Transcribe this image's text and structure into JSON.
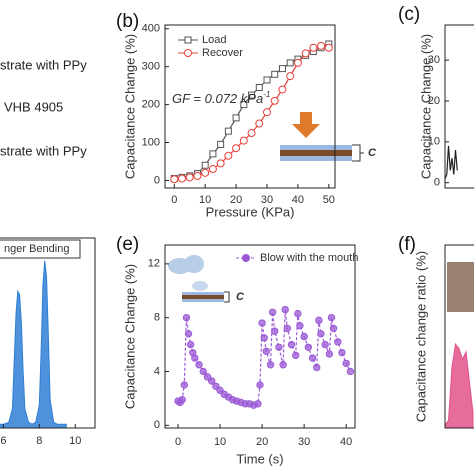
{
  "schematic_labels": [
    "strate with PPy",
    "VHB 4905",
    "strate with PPy"
  ],
  "chart_data": [
    {
      "type": "line",
      "panel_label": "(b)",
      "ylabel": "Capacitance Change (%)",
      "xlabel": "Pressure (KPa)",
      "annotation": "GF = 0.072 kPa",
      "annotation_superscript": "-1",
      "inset_label": "C",
      "legend": "upper left",
      "x": [
        0,
        2.5,
        5,
        7.5,
        10,
        12.5,
        15,
        17.5,
        20,
        22.5,
        25,
        27.5,
        30,
        32.5,
        35,
        37.5,
        40,
        42.5,
        45,
        47.5,
        50
      ],
      "series": [
        {
          "name": "Load",
          "color": "#555555",
          "marker": "square",
          "values": [
            5,
            8,
            12,
            18,
            40,
            70,
            95,
            130,
            165,
            200,
            225,
            245,
            265,
            280,
            295,
            310,
            320,
            330,
            340,
            350,
            360
          ]
        },
        {
          "name": "Recover",
          "color": "#e8403a",
          "marker": "circle",
          "values": [
            3,
            5,
            8,
            12,
            20,
            30,
            45,
            65,
            85,
            105,
            125,
            150,
            180,
            210,
            240,
            275,
            310,
            335,
            350,
            355,
            350
          ]
        }
      ],
      "xlim": [
        -3,
        52
      ],
      "ylim": [
        -20,
        410
      ],
      "xticks": [
        0,
        10,
        20,
        30,
        40,
        50
      ],
      "yticks": [
        0,
        100,
        200,
        300,
        400
      ]
    },
    {
      "type": "line",
      "panel_label": "(c)",
      "ylabel": "Capacitance Change (%)",
      "x": [
        0,
        1,
        2,
        3,
        4,
        5,
        6,
        7
      ],
      "series": [
        {
          "color": "#222222",
          "marker": "none",
          "values": [
            1,
            2,
            9,
            3,
            6,
            2,
            8,
            3
          ]
        }
      ],
      "xlim": [
        0,
        20
      ],
      "ylim": [
        -1.3,
        38.6
      ],
      "yticks": [
        0,
        10,
        20,
        30
      ]
    },
    {
      "type": "area",
      "legend": "upper left",
      "x": [
        5.7,
        6,
        6.3,
        6.5,
        6.6,
        6.7,
        6.8,
        6.9,
        7,
        7.1,
        7.2,
        7.4,
        7.6,
        7.8,
        8,
        8.1,
        8.2,
        8.3,
        8.4,
        8.5,
        8.6,
        8.8,
        9,
        9.2,
        9.5
      ],
      "series": [
        {
          "name": "nger Bending",
          "color": "#2f7fd6",
          "marker": "none",
          "values": [
            0.02,
            0.02,
            0.03,
            0.1,
            0.35,
            0.6,
            0.72,
            0.7,
            0.55,
            0.3,
            0.1,
            0.03,
            0.02,
            0.03,
            0.12,
            0.4,
            0.75,
            0.88,
            0.8,
            0.5,
            0.15,
            0.03,
            0.02,
            0.02,
            0.02
          ]
        }
      ],
      "xlim": [
        5.7,
        11.1
      ],
      "ylim": [
        0,
        1
      ],
      "xticks": [
        6,
        8,
        10
      ]
    },
    {
      "type": "line",
      "panel_label": "(e)",
      "ylabel": "Capacitance Change (%)",
      "xlabel": "Time (s)",
      "inset_label": "C",
      "legend": "upper right",
      "x": [
        0,
        0.5,
        1,
        1.5,
        2,
        2.5,
        3,
        3.5,
        4,
        5,
        6,
        7,
        8,
        9,
        10,
        11,
        12,
        13,
        14,
        15,
        16,
        17,
        18,
        19,
        19.5,
        20,
        20.5,
        21,
        22,
        22.5,
        23,
        24,
        25,
        25.5,
        26,
        27,
        28,
        28.5,
        29,
        30,
        31,
        32,
        33,
        33.5,
        34,
        35,
        36,
        36.5,
        37,
        38,
        39,
        40,
        41
      ],
      "series": [
        {
          "name": "Blow with the mouth",
          "color": "#9b59d6",
          "marker": "circle",
          "dash": true,
          "values": [
            1.8,
            1.7,
            1.9,
            3,
            8,
            6.8,
            6,
            5.4,
            5,
            4.5,
            4,
            3.6,
            3.3,
            2.9,
            2.6,
            2.3,
            2.1,
            1.9,
            1.8,
            1.7,
            1.6,
            1.6,
            1.5,
            1.6,
            3,
            7.6,
            6.5,
            5.5,
            4.5,
            8.4,
            7,
            5.8,
            4.5,
            8.6,
            7.2,
            6,
            5.2,
            8.3,
            7.4,
            6.6,
            5.8,
            5,
            4.3,
            7.8,
            6.8,
            6,
            5.3,
            8,
            7.2,
            6.2,
            5.4,
            4.6,
            4
          ]
        }
      ],
      "xlim": [
        -3.1,
        42.1
      ],
      "ylim": [
        -0.2,
        13.4
      ],
      "xticks": [
        0,
        10,
        20,
        30,
        40
      ],
      "yticks": [
        0,
        4,
        8,
        12
      ]
    },
    {
      "type": "area",
      "panel_label": "(f)",
      "ylabel": "Capacitance change ratio (%)",
      "x": [
        0,
        1,
        2,
        3,
        4,
        5,
        6,
        7,
        8
      ],
      "series": [
        {
          "color": "#e0528a",
          "marker": "none",
          "values": [
            2,
            5,
            40,
            55,
            52,
            45,
            50,
            30,
            10
          ]
        }
      ],
      "xlim": [
        0,
        10
      ],
      "ylim": [
        0,
        120
      ]
    }
  ]
}
